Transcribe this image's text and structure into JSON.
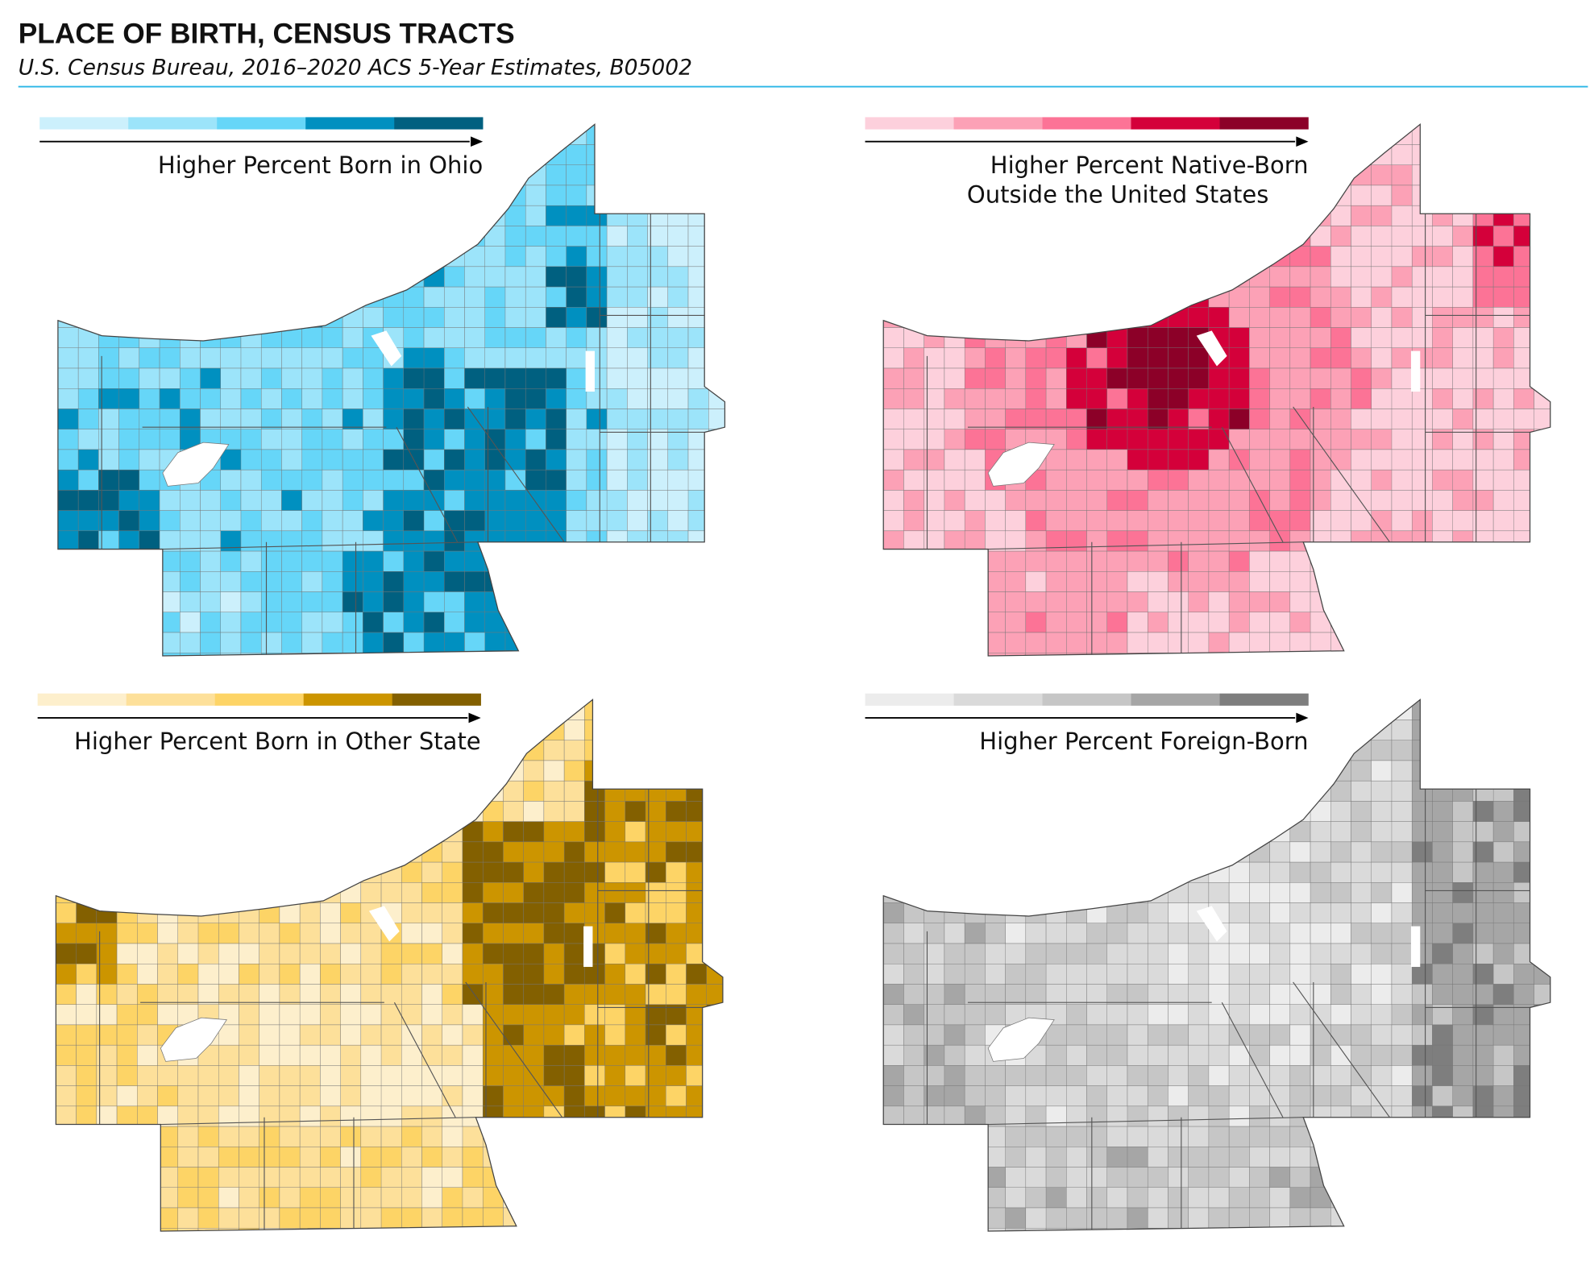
{
  "header": {
    "title": "PLACE OF BIRTH, CENSUS TRACTS",
    "subtitle": "U.S. Census Bureau, 2016–2020 ACS 5-Year Estimates, B05002",
    "rule_color": "#29b6e6"
  },
  "panels": [
    {
      "legend_lines": [
        "Higher Percent Born in Ohio"
      ],
      "colors": [
        "#ccf0fc",
        "#9ce4fa",
        "#66d6f8",
        "#0090c0",
        "#006080"
      ]
    },
    {
      "legend_lines": [
        "Higher Percent Native-Born",
        "Outside the United States"
      ],
      "colors": [
        "#fdd0dc",
        "#fca1b6",
        "#fc7396",
        "#d4003a",
        "#8c0028"
      ]
    },
    {
      "legend_lines": [
        "Higher Percent Born in Other State"
      ],
      "colors": [
        "#fdefcc",
        "#fde09a",
        "#fdd466",
        "#cc9500",
        "#836000"
      ]
    },
    {
      "legend_lines": [
        "Higher Percent Foreign-Born"
      ],
      "colors": [
        "#ececec",
        "#dadada",
        "#c6c6c6",
        "#a6a6a6",
        "#7e7e7e"
      ]
    }
  ]
}
